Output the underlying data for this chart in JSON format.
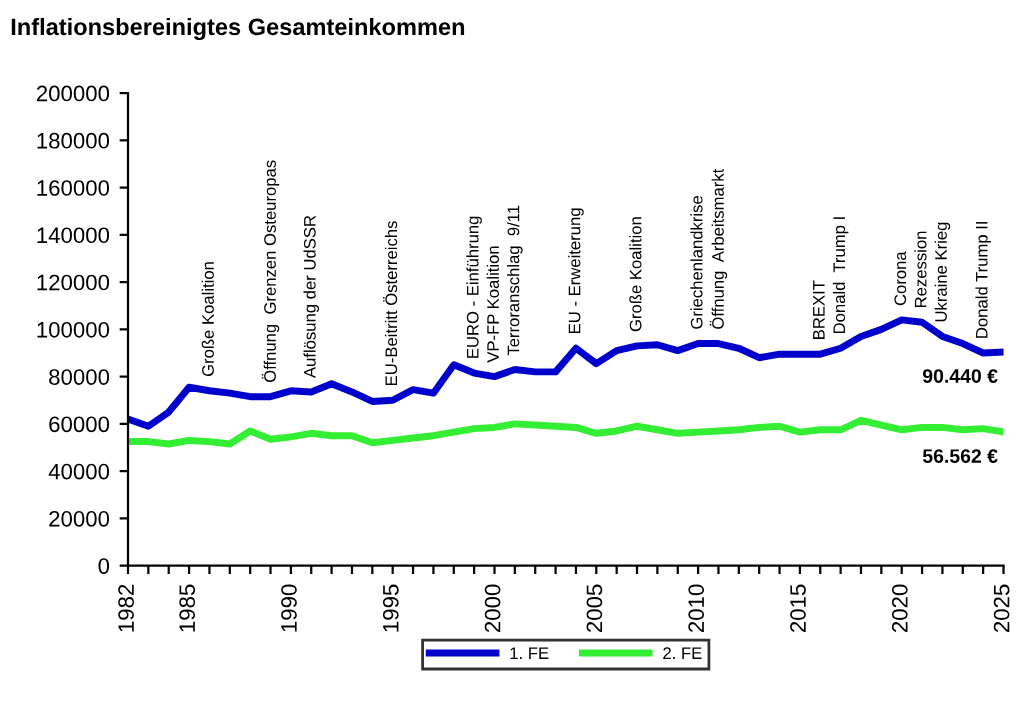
{
  "chart_data": {
    "type": "line",
    "title": "Inflationsbereinigtes Gesamteinkommen",
    "x": [
      1982,
      1983,
      1984,
      1985,
      1986,
      1987,
      1988,
      1989,
      1990,
      1991,
      1992,
      1993,
      1994,
      1995,
      1996,
      1997,
      1998,
      1999,
      2000,
      2001,
      2002,
      2003,
      2004,
      2005,
      2006,
      2007,
      2008,
      2009,
      2010,
      2011,
      2012,
      2013,
      2014,
      2015,
      2016,
      2017,
      2018,
      2019,
      2020,
      2021,
      2022,
      2023,
      2024,
      2025
    ],
    "series": [
      {
        "name": "1. FE",
        "color": "#0000cc",
        "values": [
          62000,
          59000,
          65000,
          75500,
          74000,
          73000,
          71500,
          71500,
          74000,
          73500,
          77000,
          73500,
          69500,
          70000,
          74500,
          73000,
          85000,
          81500,
          80000,
          83000,
          82000,
          82000,
          92000,
          85500,
          91000,
          93000,
          93500,
          91000,
          94000,
          94000,
          92000,
          88000,
          89500,
          89500,
          89500,
          92000,
          97000,
          100000,
          104000,
          103000,
          97000,
          94000,
          90000,
          90440
        ]
      },
      {
        "name": "2. FE",
        "color": "#33ee33",
        "values": [
          52500,
          52500,
          51500,
          53000,
          52500,
          51500,
          57000,
          53500,
          54500,
          56000,
          55000,
          55000,
          52000,
          53000,
          54000,
          55000,
          56500,
          58000,
          58500,
          60000,
          59500,
          59000,
          58500,
          56000,
          57000,
          59000,
          57500,
          56000,
          56500,
          57000,
          57500,
          58500,
          59000,
          56500,
          57500,
          57500,
          61500,
          59500,
          57500,
          58500,
          58500,
          57500,
          58000,
          56562
        ]
      }
    ],
    "annotations": [
      {
        "text": "Große Koalition",
        "x": 1986,
        "y": 74000
      },
      {
        "text": "Öffnung  Grenzen Osteuropas",
        "x": 1989,
        "y": 71500
      },
      {
        "text": "Auflösung der UdSSR",
        "x": 1991,
        "y": 73500
      },
      {
        "text": "EU-Beitritt Österreichs",
        "x": 1995,
        "y": 70000
      },
      {
        "text": "EURO - Einführung",
        "x": 1999,
        "y": 81500
      },
      {
        "text": "VP-FP Koalition",
        "x": 2000,
        "y": 80000
      },
      {
        "text": "Terroranschlag  9/11",
        "x": 2001,
        "y": 83000
      },
      {
        "text": "EU - Erweiterung",
        "x": 2004,
        "y": 92000
      },
      {
        "text": "Große Koalition",
        "x": 2007,
        "y": 93000
      },
      {
        "text": "Griechenlandkrise",
        "x": 2010,
        "y": 94000
      },
      {
        "text": "Öffnung  Arbeitsmarkt",
        "x": 2011,
        "y": 94000
      },
      {
        "text": "BREXIT",
        "x": 2016,
        "y": 89500
      },
      {
        "text": "Donald  Trump I",
        "x": 2017,
        "y": 92000
      },
      {
        "text": "Corona",
        "x": 2020,
        "y": 104000
      },
      {
        "text": "Rezession",
        "x": 2021,
        "y": 103000
      },
      {
        "text": "Ukraine Krieg",
        "x": 2022,
        "y": 97000
      },
      {
        "text": "Donald Trump II",
        "x": 2024,
        "y": 90000
      },
      {
        "text": "90.440 €",
        "x": 2025,
        "y": 90440
      },
      {
        "text": "56.562 €",
        "x": 2025,
        "y": 56562
      }
    ],
    "xlim": [
      1982,
      2025
    ],
    "xticks": [
      1982,
      {
        "value": 1983,
        "label": null
      },
      {
        "value": 1984,
        "label": null
      },
      1985,
      {
        "value": 1986,
        "label": null
      },
      {
        "value": 1987,
        "label": null
      },
      {
        "value": 1988,
        "label": null
      },
      {
        "value": 1989,
        "label": null
      },
      1990,
      {
        "value": 1991,
        "label": null
      },
      {
        "value": 1992,
        "label": null
      },
      {
        "value": 1993,
        "label": null
      },
      {
        "value": 1994,
        "label": null
      },
      1995,
      {
        "value": 1996,
        "label": null
      },
      {
        "value": 1997,
        "label": null
      },
      {
        "value": 1998,
        "label": null
      },
      {
        "value": 1999,
        "label": null
      },
      2000,
      {
        "value": 2001,
        "label": null
      },
      {
        "value": 2002,
        "label": null
      },
      {
        "value": 2003,
        "label": null
      },
      {
        "value": 2004,
        "label": null
      },
      2005,
      {
        "value": 2006,
        "label": null
      },
      {
        "value": 2007,
        "label": null
      },
      {
        "value": 2008,
        "label": null
      },
      {
        "value": 2009,
        "label": null
      },
      2010,
      {
        "value": 2011,
        "label": null
      },
      {
        "value": 2012,
        "label": null
      },
      {
        "value": 2013,
        "label": null
      },
      {
        "value": 2014,
        "label": null
      },
      2015,
      {
        "value": 2016,
        "label": null
      },
      {
        "value": 2017,
        "label": null
      },
      {
        "value": 2018,
        "label": null
      },
      {
        "value": 2019,
        "label": null
      },
      2020,
      {
        "value": 2021,
        "label": null
      },
      {
        "value": 2022,
        "label": null
      },
      {
        "value": 2023,
        "label": null
      },
      {
        "value": 2024,
        "label": null
      },
      2025
    ],
    "ylim": [
      0,
      200000
    ],
    "yticks": [
      0,
      20000,
      40000,
      60000,
      80000,
      100000,
      120000,
      140000,
      160000,
      180000,
      200000
    ],
    "legend": "bottom",
    "grid": false,
    "marker": "none",
    "line_style": "solid"
  }
}
